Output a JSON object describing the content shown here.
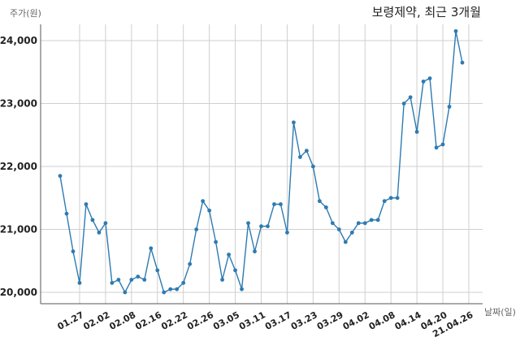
{
  "chart_data": {
    "type": "line",
    "title": "보령제약, 최근 3개월",
    "ylabel": "주가(원)",
    "xlabel": "날짜(일)",
    "ylim": [
      19800,
      24400
    ],
    "yticks": [
      20000,
      21000,
      22000,
      23000,
      24000
    ],
    "ytick_labels": [
      "20,000",
      "21,000",
      "22,000",
      "23,000",
      "24,000"
    ],
    "xtick_labels": [
      "01.27",
      "02.02",
      "02.08",
      "02.16",
      "02.22",
      "02.26",
      "03.05",
      "03.11",
      "03.17",
      "03.23",
      "03.29",
      "04.02",
      "04.08",
      "04.14",
      "04.20",
      "21.04.26"
    ],
    "xtick_index": [
      3,
      7,
      11,
      15,
      19,
      23,
      27,
      31,
      35,
      39,
      43,
      47,
      51,
      55,
      59,
      63
    ],
    "grid": true,
    "color": "#2e7bb0",
    "series": [
      {
        "values": [
          21850,
          21250,
          20650,
          20150,
          21400,
          21150,
          20950,
          21100,
          20150,
          20200,
          20000,
          20200,
          20250,
          20200,
          20700,
          20350,
          20000,
          20050,
          20050,
          20150,
          20450,
          21000,
          21450,
          21300,
          20800,
          20200,
          20600,
          20350,
          20050,
          21100,
          20650,
          21050,
          21050,
          21400,
          21400,
          20950,
          22700,
          22150,
          22250,
          22000,
          21450,
          21350,
          21100,
          21000,
          20800,
          20950,
          21100,
          21100,
          21150,
          21150,
          21450,
          21500,
          21500,
          23000,
          23100,
          22550,
          23350,
          23400,
          22300,
          22350,
          22950,
          24150,
          23650
        ]
      }
    ]
  }
}
